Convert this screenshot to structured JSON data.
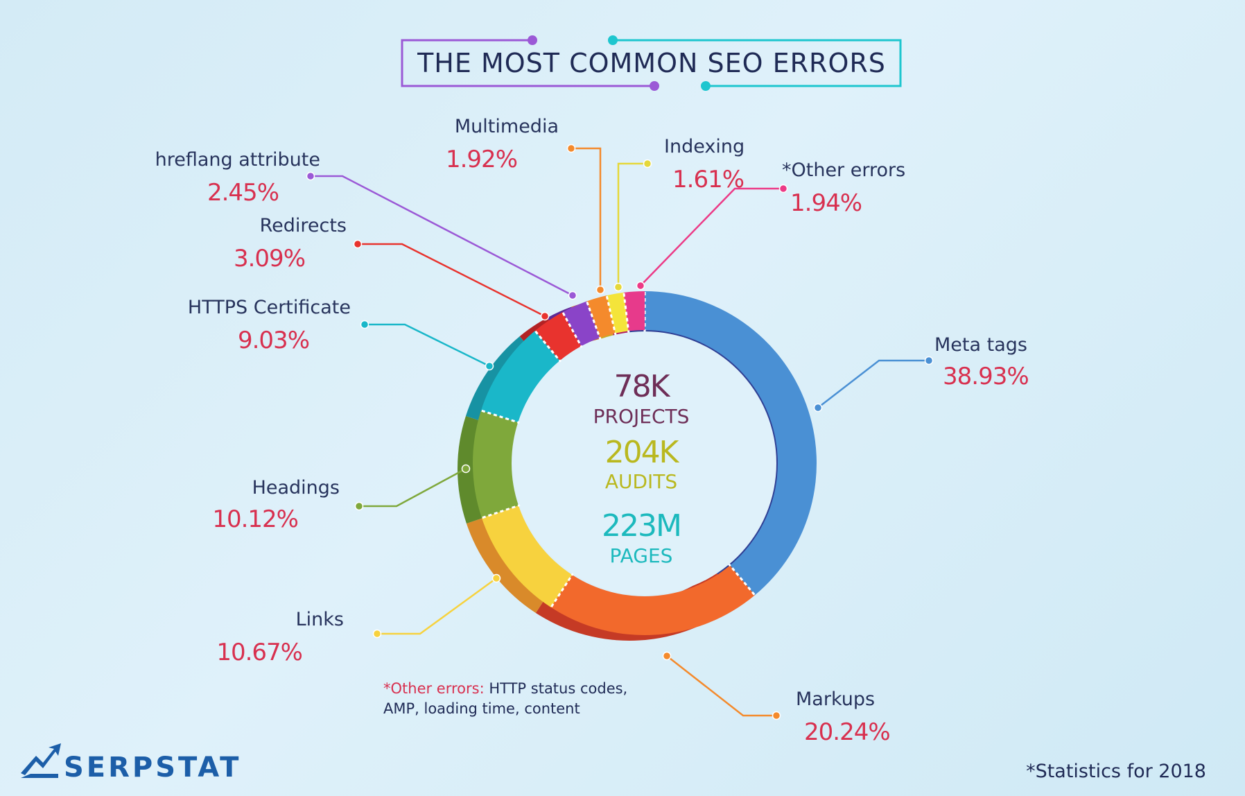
{
  "chart_data": {
    "type": "pie",
    "title": "THE MOST COMMON SEO ERRORS",
    "slices": [
      {
        "label": "Meta tags",
        "value": 38.93,
        "value_text": "38.93%",
        "color": "#4a90d4",
        "dark": "#2f3f94"
      },
      {
        "label": "Markups",
        "value": 20.24,
        "value_text": "20.24%",
        "color": "#f2692c",
        "dark": "#c53a25"
      },
      {
        "label": "Links",
        "value": 10.67,
        "value_text": "10.67%",
        "color": "#f7d23e",
        "dark": "#d98a2a"
      },
      {
        "label": "Headings",
        "value": 10.12,
        "value_text": "10.12%",
        "color": "#7fa83b",
        "dark": "#5f8a2c"
      },
      {
        "label": "HTTPS Certificate",
        "value": 9.03,
        "value_text": "9.03%",
        "color": "#1ab7c9",
        "dark": "#1792a3"
      },
      {
        "label": "Redirects",
        "value": 3.09,
        "value_text": "3.09%",
        "color": "#e8332e",
        "dark": "#b32224"
      },
      {
        "label": "hreflang attribute",
        "value": 2.45,
        "value_text": "2.45%",
        "color": "#8a44c8",
        "dark": "#5d2a95"
      },
      {
        "label": "Multimedia",
        "value": 1.92,
        "value_text": "1.92%",
        "color": "#f48a2c",
        "dark": "#c8671e"
      },
      {
        "label": "Indexing",
        "value": 1.61,
        "value_text": "1.61%",
        "color": "#f4e43a",
        "dark": "#c9a923"
      },
      {
        "label": "*Other errors",
        "value": 1.94,
        "value_text": "1.94%",
        "color": "#e73a8b",
        "dark": "#b01f63"
      }
    ],
    "center": [
      {
        "number": "78K",
        "word": "PROJECTS",
        "color": "#6e2e57"
      },
      {
        "number": "204K",
        "word": "AUDITS",
        "color": "#b9b81f"
      },
      {
        "number": "223M",
        "word": "PAGES",
        "color": "#1cb9bd"
      }
    ],
    "note": {
      "prefix": "*Other errors:",
      "line1": " HTTP status codes,",
      "line2": "AMP, loading time, content"
    },
    "footnote": "*Statistics for 2018"
  },
  "brand": {
    "name": "SERPSTAT",
    "logo_icon": "serpstat-chart-logo-icon"
  },
  "colors": {
    "title": "#1f2a55",
    "percent": "#d8304f",
    "frame_left": "#9b59d6",
    "frame_right": "#1ec6cf"
  }
}
